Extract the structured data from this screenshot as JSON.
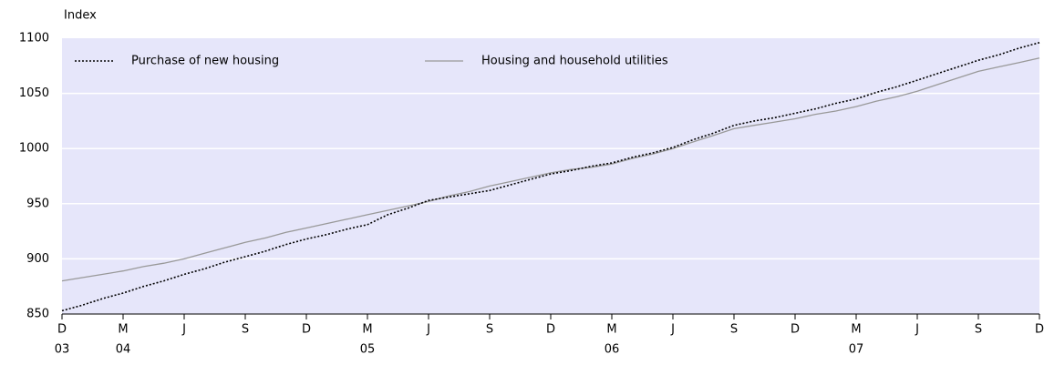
{
  "chart_data": {
    "type": "line",
    "y_axis_label": "Index",
    "categories": [
      "D",
      null,
      null,
      "M",
      null,
      null,
      "J",
      null,
      null,
      "S",
      null,
      null,
      "D",
      null,
      null,
      "M",
      null,
      null,
      "J",
      null,
      null,
      "S",
      null,
      null,
      "D",
      null,
      null,
      "M",
      null,
      null,
      "J",
      null,
      null,
      "S",
      null,
      null,
      "D",
      null,
      null,
      "M",
      null,
      null,
      "J",
      null,
      null,
      "S",
      null,
      null,
      "D"
    ],
    "category_years": [
      "03",
      null,
      null,
      "04",
      null,
      null,
      null,
      null,
      null,
      null,
      null,
      null,
      null,
      null,
      null,
      "05",
      null,
      null,
      null,
      null,
      null,
      null,
      null,
      null,
      null,
      null,
      null,
      "06",
      null,
      null,
      null,
      null,
      null,
      null,
      null,
      null,
      null,
      null,
      null,
      "07",
      null,
      null,
      null,
      null,
      null,
      null,
      null,
      null,
      null
    ],
    "series": [
      {
        "name": "Purchase of new housing",
        "color": "#000000",
        "dashed": true,
        "values": [
          853,
          858,
          864,
          869,
          875,
          880,
          886,
          891,
          897,
          902,
          907,
          913,
          918,
          922,
          927,
          931,
          940,
          946,
          953,
          956,
          959,
          962,
          967,
          972,
          977,
          980,
          984,
          987,
          992,
          996,
          1001,
          1008,
          1014,
          1021,
          1025,
          1028,
          1032,
          1036,
          1041,
          1045,
          1051,
          1056,
          1062,
          1068,
          1074,
          1080,
          1085,
          1091,
          1096
        ]
      },
      {
        "name": "Housing and household utilities",
        "color": "#999999",
        "dashed": false,
        "values": [
          880,
          883,
          886,
          889,
          893,
          896,
          900,
          905,
          910,
          915,
          919,
          924,
          928,
          932,
          936,
          940,
          944,
          948,
          952,
          957,
          961,
          966,
          970,
          974,
          978,
          981,
          983,
          986,
          991,
          995,
          1000,
          1006,
          1012,
          1018,
          1021,
          1024,
          1027,
          1031,
          1034,
          1038,
          1043,
          1047,
          1052,
          1058,
          1064,
          1070,
          1074,
          1078,
          1082
        ]
      }
    ],
    "ylim": [
      850,
      1100
    ],
    "yticks": [
      850,
      900,
      950,
      1000,
      1050,
      1100
    ],
    "grid": true,
    "background": "#e6e6fa",
    "legend": "top-left"
  }
}
